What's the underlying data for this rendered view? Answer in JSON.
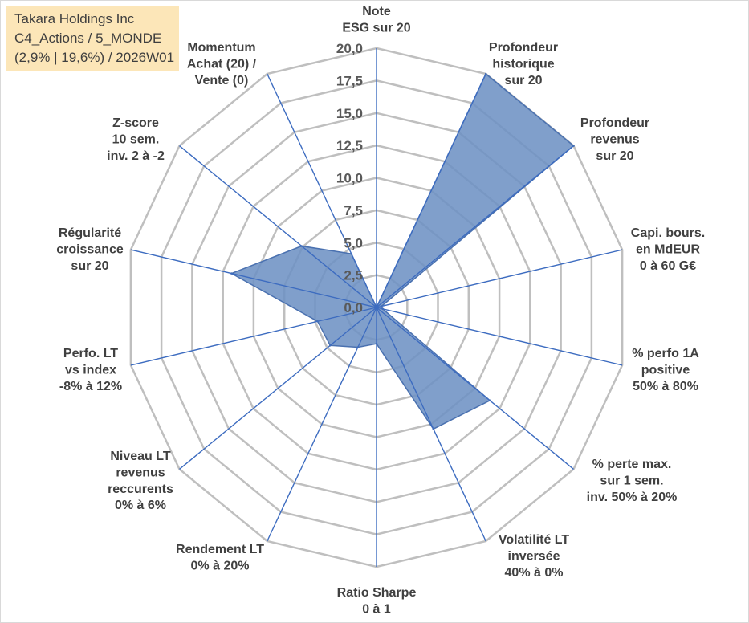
{
  "chart_data": {
    "type": "radar",
    "title": "Takara Holdings Inc",
    "subtitle": [
      "C4_Actions / 5_MONDE",
      "(2,9% | 19,6%) / 2026W01"
    ],
    "categories": [
      [
        "Note",
        "ESG sur 20"
      ],
      [
        "Profondeur",
        "historique",
        "sur 20"
      ],
      [
        "Profondeur",
        "revenus",
        "sur 20"
      ],
      [
        "Capi. bours.",
        "en MdEUR",
        "0 à 60 G€"
      ],
      [
        "% perfo 1A",
        "positive",
        "50% à 80%"
      ],
      [
        "% perte max.",
        "sur 1 sem.",
        "inv. 50% à 20%"
      ],
      [
        "Volatilité LT",
        "inversée",
        "40% à 0%"
      ],
      [
        "Ratio Sharpe",
        "0 à 1"
      ],
      [
        "Rendement LT",
        "0% à 20%"
      ],
      [
        "Niveau LT",
        "revenus",
        "reccurents",
        "0% à 6%"
      ],
      [
        "Perfo. LT",
        "vs index",
        "-8% à 12%"
      ],
      [
        "Régularité",
        "croissance",
        "sur 20"
      ],
      [
        "Z-score",
        "10 sem.",
        "inv. 2 à -2"
      ],
      [
        "Momentum",
        "Achat (20) /",
        "Vente (0)"
      ]
    ],
    "values": [
      0,
      20,
      20,
      0.4,
      0.5,
      11.5,
      10.4,
      2.8,
      3.4,
      4.7,
      4.8,
      11.8,
      7.6,
      4.6
    ],
    "ylim": [
      0,
      20
    ],
    "ticks": [
      "0,0",
      "2,5",
      "5,0",
      "7,5",
      "10,0",
      "12,5",
      "15,0",
      "17,5",
      "20,0"
    ],
    "grid": true
  },
  "colors": {
    "series_fill": "#6e92c4",
    "series_stroke": "#4a71b0",
    "axis_spoke": "#3d6cc0",
    "grid_ring": "#bfbfbf",
    "tick_text": "#595959",
    "label_text": "#404040",
    "title_bg": "#fce6b8",
    "border": "#d9d9d9"
  }
}
